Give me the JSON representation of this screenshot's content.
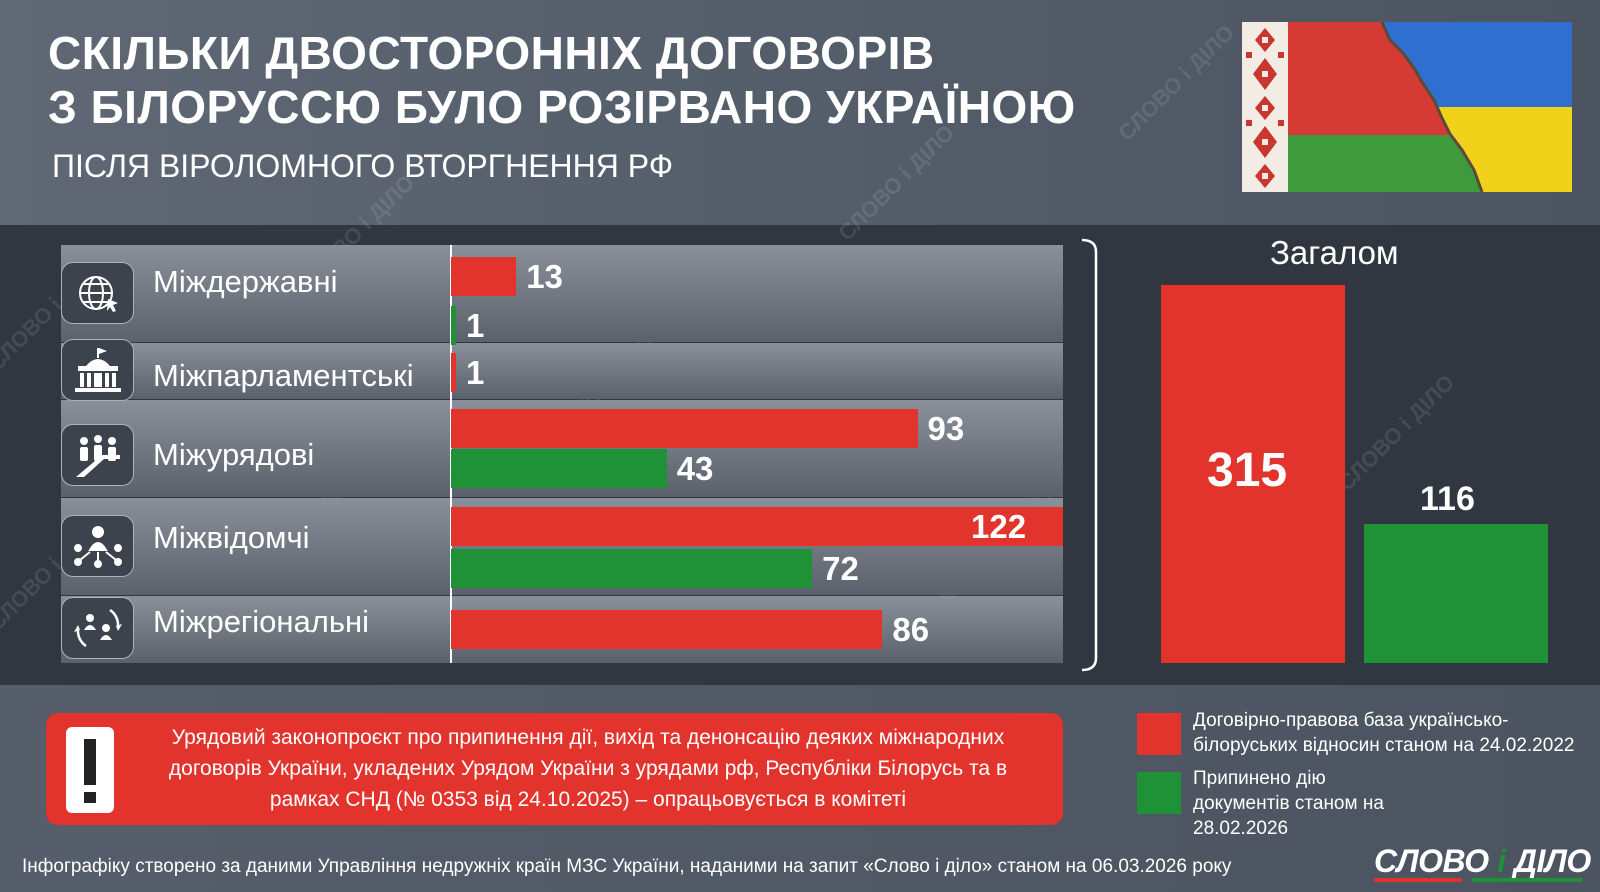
{
  "header": {
    "title_line1": "СКІЛЬКИ ДВОСТОРОННІХ ДОГОВОРІВ",
    "title_line2": "З БІЛОРУССЮ БУЛО РОЗІРВАНО УКРАЇНОЮ",
    "subtitle": "ПІСЛЯ ВІРОЛОМНОГО ВТОРГНЕННЯ РФ"
  },
  "watermark_text": "СЛОВО і ДІЛО",
  "icons": [
    "globe-icon",
    "parliament-icon",
    "government-icon",
    "network-icon",
    "regions-icon"
  ],
  "chart_data": [
    {
      "type": "bar",
      "orientation": "horizontal",
      "categories": [
        "Міждержавні",
        "Міжпарламентські",
        "Міжурядові",
        "Міжвідомчі",
        "Міжрегіональні"
      ],
      "series": [
        {
          "name": "Договірно-правова база українсько-білоруських відносин станом на 24.02.2022",
          "color": "#e2342d",
          "values": [
            13,
            1,
            93,
            122,
            86
          ]
        },
        {
          "name": "Припинено дію документів станом на 28.02.2026",
          "color": "#1f9136",
          "values": [
            1,
            null,
            43,
            72,
            null
          ]
        }
      ],
      "xlim": [
        0,
        122
      ],
      "grid": false
    },
    {
      "type": "bar",
      "title": "Загалом",
      "categories": [
        "",
        ""
      ],
      "values": [
        315,
        116
      ],
      "colors": [
        "#e2342d",
        "#1f9136"
      ],
      "ylim": [
        0,
        315
      ]
    }
  ],
  "notice": {
    "text": "Урядовий законопроєкт про припинення дії, вихід та денонсацію деяких міжнародних договорів України, укладених Урядом України з урядами рф, Республіки Білорусь та в рамках СНД (№ 0353 від 24.10.2025) – опрацьовується в комітеті"
  },
  "legend": [
    {
      "label": "Договірно-правова база українсько-білоруських відносин станом на 24.02.2022",
      "color": "#e2342d"
    },
    {
      "label": "Припинено дію документів станом на 28.02.2026",
      "color": "#1f9136"
    }
  ],
  "footer": {
    "source": "Інфографіку створено за даними Управління недружніх країн МЗС України, наданими на запит «Слово і діло» станом на 06.03.2026 року",
    "logo_part1": "СЛОВО ",
    "logo_part2": "і",
    "logo_part3": " ДІЛО"
  }
}
